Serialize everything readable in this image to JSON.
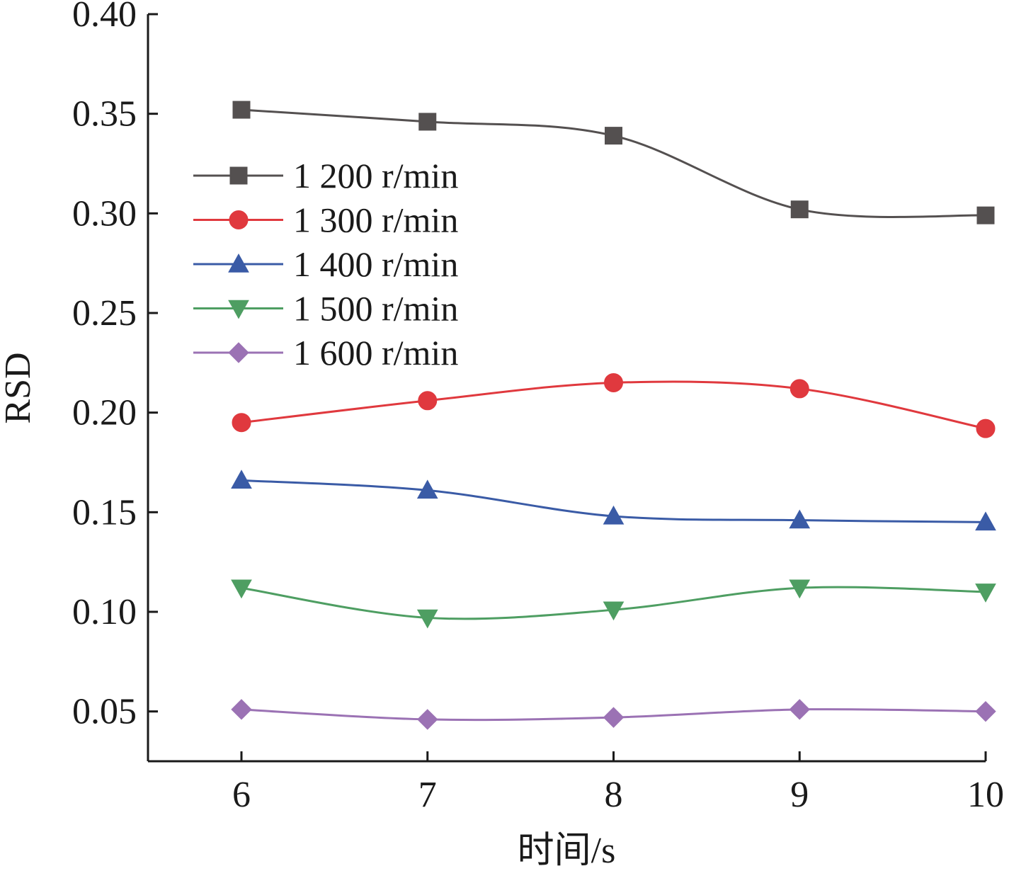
{
  "chart_data": {
    "type": "line",
    "xlabel": "时间/s",
    "ylabel": "RSD",
    "xlim": [
      5.5,
      10
    ],
    "ylim": [
      0.025,
      0.4
    ],
    "x_ticks": [
      6,
      7,
      8,
      9,
      10
    ],
    "y_ticks": [
      0.05,
      0.1,
      0.15,
      0.2,
      0.25,
      0.3,
      0.35,
      0.4
    ],
    "y_tick_labels": [
      "0.05",
      "0.10",
      "0.15",
      "0.20",
      "0.25",
      "0.30",
      "0.35",
      "0.40"
    ],
    "x_tick_labels": [
      "6",
      "7",
      "8",
      "9",
      "10"
    ],
    "grid": false,
    "legend_position": "upper-left",
    "x": [
      6,
      7,
      8,
      9,
      10
    ],
    "series": [
      {
        "name": "1 200 r/min",
        "color": "#545050",
        "marker": "square",
        "values": [
          0.352,
          0.346,
          0.339,
          0.302,
          0.299
        ]
      },
      {
        "name": "1 300 r/min",
        "color": "#e0393e",
        "marker": "circle",
        "values": [
          0.195,
          0.206,
          0.215,
          0.212,
          0.192
        ]
      },
      {
        "name": "1 400 r/min",
        "color": "#3a5ba6",
        "marker": "triangle-up",
        "values": [
          0.166,
          0.161,
          0.148,
          0.146,
          0.145
        ]
      },
      {
        "name": "1 500 r/min",
        "color": "#4e9e62",
        "marker": "triangle-down",
        "values": [
          0.112,
          0.097,
          0.101,
          0.112,
          0.11
        ]
      },
      {
        "name": "1 600 r/min",
        "color": "#9b72b4",
        "marker": "diamond",
        "values": [
          0.051,
          0.046,
          0.047,
          0.051,
          0.05
        ]
      }
    ]
  }
}
